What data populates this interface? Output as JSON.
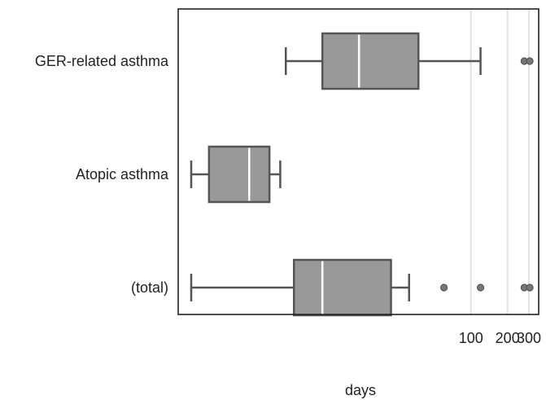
{
  "chart_data": {
    "type": "boxplot",
    "title": "",
    "xlabel": "days",
    "ylabel": "",
    "x_scale": "log",
    "xlim": [
      0.3,
      400
    ],
    "x_ticks": [
      100,
      200,
      300
    ],
    "x_tick_labels": [
      "100",
      "200",
      "300"
    ],
    "grid": "vertical lines at x ticks",
    "categories": [
      "GER-related asthma",
      "Atopic asthma",
      "(total)"
    ],
    "boxes": [
      {
        "category": "GER-related asthma",
        "whisker_low": 3,
        "q1": 6,
        "median": 12,
        "q3": 37,
        "whisker_high": 120,
        "outliers": [
          275,
          305
        ]
      },
      {
        "category": "Atopic asthma",
        "whisker_low": 0.5,
        "q1": 0.7,
        "median": 1.5,
        "q3": 2.2,
        "whisker_high": 2.7,
        "outliers": []
      },
      {
        "category": "(total)",
        "whisker_low": 0.5,
        "q1": 3.5,
        "median": 6,
        "q3": 22,
        "whisker_high": 31,
        "outliers": [
          60,
          120,
          275,
          305
        ]
      }
    ],
    "colors": {
      "box_fill": "#999999",
      "box_stroke": "#555555",
      "median": "#ffffff",
      "grid": "#e2e2e2",
      "outlier": "#777777"
    }
  }
}
